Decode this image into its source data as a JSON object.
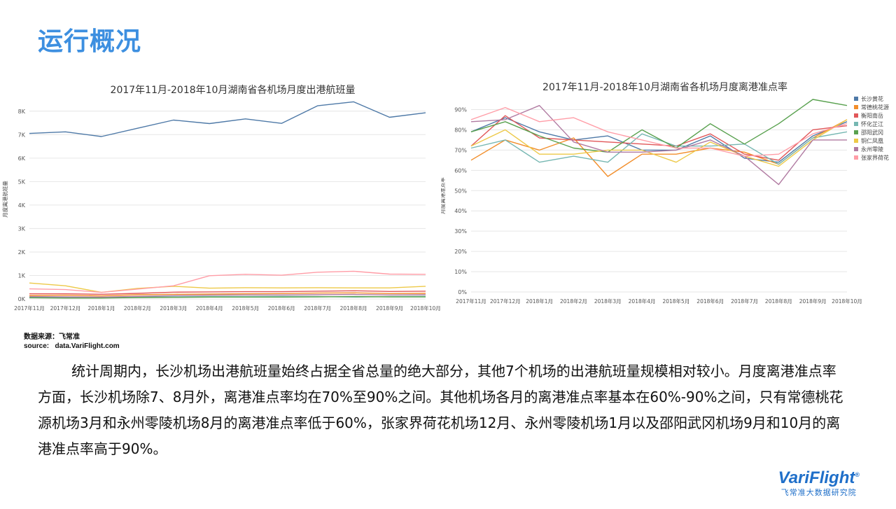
{
  "page": {
    "title": "运行概况",
    "source_line1": "数据来源：飞常准",
    "source_line2": "source:   data.VariFlight.com",
    "summary": "统计周期内，长沙机场出港航班量始终占据全省总量的绝大部分，其他7个机场的出港航班量规模相对较小。月度离港准点率方面，长沙机场除7、8月外，离港准点率均在70%至90%之间。其他机场各月的离港准点率基本在60%-90%之间，只有常德桃花源机场3月和永州零陵机场8月的离港准点率低于60%，张家界荷花机场12月、永州零陵机场1月以及邵阳武冈机场9月和10月的离港准点率高于90%。",
    "logo_text": "VariFlight",
    "logo_sub": "飞常准大数据研究院"
  },
  "colors": {
    "title": "#3d8fe0",
    "series": [
      "#4e79a7",
      "#f28e2b",
      "#e15759",
      "#76b7b2",
      "#59a14f",
      "#edc948",
      "#b07aa1",
      "#ff9da7"
    ]
  },
  "chart_data": [
    {
      "type": "line",
      "title": "2017年11月-2018年10月湖南省各机场月度出港航班量",
      "ylabel": "月度离港航班量",
      "xlabel": "",
      "categories": [
        "2017年11月",
        "2017年12月",
        "2018年1月",
        "2018年2月",
        "2018年3月",
        "2018年4月",
        "2018年5月",
        "2018年6月",
        "2018年7月",
        "2018年8月",
        "2018年9月",
        "2018年10月"
      ],
      "ylim": [
        0,
        8500
      ],
      "yticks": [
        0,
        1000,
        2000,
        3000,
        4000,
        5000,
        6000,
        7000,
        8000
      ],
      "ytick_labels": [
        "0K",
        "1K",
        "2K",
        "3K",
        "4K",
        "5K",
        "6K",
        "7K",
        "8K"
      ],
      "grid": true,
      "series": [
        {
          "values": [
            7050,
            7120,
            6920,
            7270,
            7620,
            7470,
            7670,
            7480,
            8230,
            8400,
            7740,
            7930
          ]
        },
        {
          "values": [
            150,
            160,
            130,
            180,
            200,
            210,
            220,
            230,
            250,
            260,
            230,
            240
          ]
        },
        {
          "values": [
            220,
            220,
            200,
            240,
            290,
            300,
            310,
            310,
            330,
            350,
            320,
            330
          ]
        },
        {
          "values": [
            80,
            70,
            60,
            80,
            90,
            100,
            100,
            110,
            100,
            80,
            100,
            110
          ]
        },
        {
          "values": [
            50,
            40,
            40,
            60,
            70,
            80,
            80,
            80,
            90,
            100,
            90,
            90
          ]
        },
        {
          "values": [
            680,
            560,
            280,
            450,
            540,
            460,
            480,
            470,
            480,
            470,
            470,
            540
          ]
        },
        {
          "values": [
            100,
            90,
            80,
            110,
            140,
            160,
            170,
            170,
            180,
            190,
            170,
            180
          ]
        },
        {
          "values": [
            430,
            400,
            280,
            420,
            560,
            990,
            1050,
            1010,
            1140,
            1180,
            1060,
            1050
          ]
        }
      ]
    },
    {
      "type": "line",
      "title": "2017年11月-2018年10月湖南省各机场月度离港准点率",
      "ylabel": "月度离港准点率",
      "xlabel": "",
      "categories": [
        "2017年11月",
        "2017年12月",
        "2018年1月",
        "2018年2月",
        "2018年3月",
        "2018年4月",
        "2018年5月",
        "2018年6月",
        "2018年7月",
        "2018年8月",
        "2018年9月",
        "2018年10月"
      ],
      "ylim": [
        0,
        95
      ],
      "yticks": [
        0,
        10,
        20,
        30,
        40,
        50,
        60,
        70,
        80,
        90
      ],
      "ytick_labels": [
        "0%",
        "10%",
        "20%",
        "30%",
        "40%",
        "50%",
        "60%",
        "70%",
        "80%",
        "90%"
      ],
      "grid": true,
      "legend_position": "top-right",
      "series": [
        {
          "name": "长沙黄花",
          "values": [
            79,
            86,
            79,
            75,
            77,
            70,
            70,
            77,
            66,
            64,
            77,
            84
          ]
        },
        {
          "name": "常德桃花源",
          "values": [
            65,
            75,
            70,
            76,
            57,
            68,
            68,
            71,
            69,
            63,
            76,
            85
          ]
        },
        {
          "name": "衡阳南岳",
          "values": [
            72,
            87,
            76,
            75,
            74,
            73,
            72,
            78,
            68,
            65,
            80,
            82
          ]
        },
        {
          "name": "怀化芷江",
          "values": [
            71,
            75,
            64,
            67,
            64,
            78,
            72,
            72,
            73,
            63,
            76,
            79
          ]
        },
        {
          "name": "邵阳武冈",
          "values": [
            79,
            84,
            77,
            71,
            69,
            80,
            71,
            83,
            73,
            83,
            95,
            92
          ]
        },
        {
          "name": "铜仁凤凰",
          "values": [
            72,
            80,
            68,
            68,
            70,
            70,
            64,
            74,
            67,
            62,
            75,
            85
          ]
        },
        {
          "name": "永州零陵",
          "values": [
            84,
            85,
            92,
            74,
            69,
            69,
            70,
            75,
            67,
            53,
            75,
            75
          ]
        },
        {
          "name": "张家界荷花",
          "values": [
            85,
            91,
            84,
            86,
            79,
            75,
            71,
            71,
            67,
            68,
            78,
            83
          ]
        }
      ]
    }
  ]
}
